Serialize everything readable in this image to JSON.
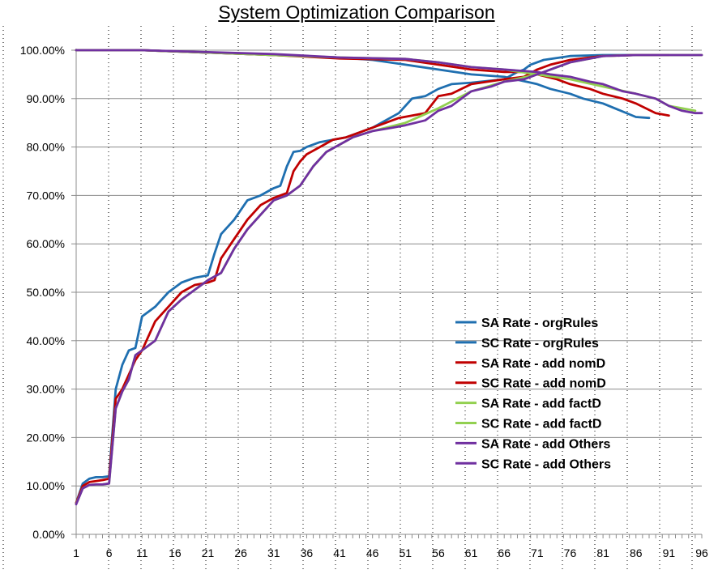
{
  "chart_data": {
    "type": "line",
    "title": "System Optimization Comparison",
    "xlabel": "",
    "ylabel": "",
    "xlim": [
      1,
      96
    ],
    "ylim": [
      0,
      100
    ],
    "y_ticks": [
      "0.00%",
      "10.00%",
      "20.00%",
      "30.00%",
      "40.00%",
      "50.00%",
      "60.00%",
      "70.00%",
      "80.00%",
      "90.00%",
      "100.00%"
    ],
    "x_ticks": [
      "1",
      "6",
      "11",
      "16",
      "21",
      "26",
      "31",
      "36",
      "41",
      "46",
      "51",
      "56",
      "61",
      "66",
      "71",
      "76",
      "81",
      "86",
      "91",
      "96"
    ],
    "grid": "major horizontal solid, minor vertical dotted",
    "legend_position": "bottom-right (inside plot)",
    "series": [
      {
        "name": "SA Rate - orgRules",
        "color": "#1f6fb0",
        "x": [
          1,
          2,
          3,
          4,
          5,
          6,
          7,
          8,
          9,
          10,
          11,
          13,
          15,
          17,
          19,
          21,
          22,
          23,
          25,
          27,
          29,
          31,
          32,
          33,
          34,
          35,
          36,
          38,
          40,
          42,
          44,
          46,
          48,
          50,
          52,
          54,
          56,
          58,
          61,
          66,
          68,
          69,
          70,
          72,
          76,
          81,
          86,
          88
        ],
        "y": [
          6.5,
          10.5,
          11.5,
          11.8,
          11.8,
          12,
          30,
          35,
          38,
          38.5,
          45,
          47,
          50,
          52,
          53,
          53.5,
          58,
          62,
          65,
          69,
          70,
          71.5,
          72,
          76,
          79,
          79.2,
          80,
          81,
          81.5,
          82,
          83,
          84,
          85.5,
          87,
          90,
          90.5,
          92,
          93,
          93.3,
          94,
          95.5,
          96,
          97,
          98,
          98.8,
          99,
          99,
          99
        ]
      },
      {
        "name": "SC Rate - orgRules",
        "color": "#1f6fb0",
        "x": [
          1,
          11,
          21,
          31,
          41,
          46,
          51,
          56,
          61,
          66,
          71,
          73,
          76,
          78,
          81,
          86,
          88
        ],
        "y": [
          100,
          100,
          99.5,
          99,
          98.5,
          98,
          97,
          96,
          95,
          94.5,
          93,
          92,
          91,
          90,
          89,
          86.2,
          86
        ]
      },
      {
        "name": "SA Rate - add nomD",
        "color": "#c00000",
        "x": [
          1,
          2,
          3,
          4,
          5,
          6,
          7,
          8,
          9,
          10,
          11,
          13,
          15,
          17,
          19,
          21,
          22,
          23,
          25,
          27,
          29,
          31,
          32,
          33,
          34,
          35,
          36,
          38,
          40,
          42,
          44,
          46,
          48,
          50,
          52,
          54,
          56,
          58,
          61,
          66,
          69,
          71,
          73,
          76,
          81,
          86,
          91
        ],
        "y": [
          6.5,
          10,
          10.8,
          11,
          11.2,
          11.5,
          28,
          30,
          33,
          36,
          38,
          44,
          47,
          50,
          51.5,
          52,
          52.5,
          57,
          61,
          65,
          68,
          69.5,
          70,
          70.5,
          75,
          77,
          78.5,
          80,
          81.5,
          82,
          83,
          84,
          85,
          86,
          86.5,
          87,
          90.5,
          91,
          93,
          94,
          94.5,
          96,
          97,
          98,
          98.8,
          99,
          99
        ]
      },
      {
        "name": "SC Rate - add nomD",
        "color": "#c00000",
        "x": [
          1,
          11,
          21,
          31,
          41,
          51,
          56,
          61,
          66,
          69,
          71,
          74,
          76,
          79,
          81,
          84,
          86,
          89,
          91
        ],
        "y": [
          100,
          100,
          99.5,
          99,
          98.3,
          98,
          97,
          96,
          95.5,
          95.5,
          95,
          94,
          93,
          92,
          91,
          90,
          89,
          87,
          86.5
        ]
      },
      {
        "name": "SA Rate - add factD",
        "color": "#92d050",
        "x": [
          1,
          2,
          3,
          4,
          5,
          6,
          7,
          8,
          9,
          10,
          11,
          13,
          15,
          17,
          19,
          21,
          23,
          25,
          27,
          29,
          31,
          33,
          35,
          37,
          39,
          41,
          43,
          46,
          51,
          56,
          61,
          66,
          71,
          76,
          81,
          86,
          91,
          96
        ],
        "y": [
          6.3,
          9.5,
          10.2,
          10.3,
          10.3,
          10.5,
          26,
          29.5,
          32,
          37,
          38,
          40,
          46,
          48.5,
          50.5,
          52.5,
          54,
          59,
          63,
          66,
          69,
          70,
          72,
          76,
          79,
          80.5,
          82,
          83.3,
          85,
          88,
          91.5,
          93.5,
          95,
          97.5,
          98.8,
          99,
          99,
          99
        ]
      },
      {
        "name": "SC Rate - add factD",
        "color": "#92d050",
        "x": [
          1,
          11,
          21,
          31,
          41,
          51,
          56,
          61,
          66,
          71,
          76,
          81,
          86,
          89,
          91,
          93,
          95
        ],
        "y": [
          100,
          100,
          99.5,
          99,
          98.5,
          98.2,
          97.5,
          96.5,
          96,
          95,
          94,
          92.5,
          91,
          90,
          88.5,
          88,
          87.5
        ]
      },
      {
        "name": "SA Rate - add Others",
        "color": "#7030a0",
        "x": [
          1,
          2,
          3,
          4,
          5,
          6,
          7,
          8,
          9,
          10,
          11,
          13,
          15,
          17,
          19,
          21,
          23,
          25,
          27,
          29,
          31,
          33,
          35,
          37,
          39,
          41,
          43,
          46,
          49,
          51,
          54,
          56,
          58,
          61,
          64,
          66,
          69,
          71,
          73,
          76,
          81,
          86,
          91,
          96
        ],
        "y": [
          6.2,
          9.5,
          10.2,
          10.3,
          10.3,
          10.5,
          26,
          29.5,
          32,
          37,
          38,
          40,
          46,
          48.5,
          50.5,
          52.5,
          54,
          59,
          63,
          66,
          69,
          70,
          72,
          76,
          79,
          80.5,
          82,
          83.3,
          84,
          84.5,
          85.5,
          87.5,
          88.5,
          91.5,
          92.5,
          93.5,
          94,
          95,
          96,
          97.5,
          98.8,
          99,
          99,
          99
        ]
      },
      {
        "name": "SC Rate  - add Others",
        "color": "#7030a0",
        "x": [
          1,
          11,
          21,
          31,
          41,
          51,
          56,
          61,
          66,
          71,
          73,
          76,
          79,
          81,
          84,
          86,
          89,
          91,
          93,
          95,
          96
        ],
        "y": [
          100,
          100,
          99.6,
          99.2,
          98.5,
          98.2,
          97.5,
          96.5,
          96,
          95.5,
          95,
          94.5,
          93.5,
          93,
          91.5,
          91,
          90,
          88.5,
          87.5,
          87,
          87
        ]
      }
    ]
  }
}
